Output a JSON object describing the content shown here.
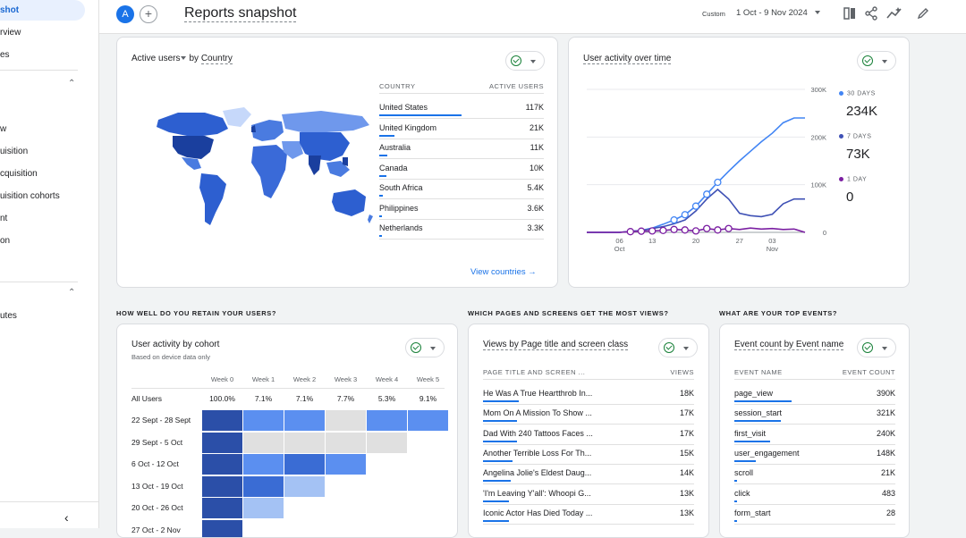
{
  "sidebar": {
    "items": [
      {
        "label": "shot"
      },
      {
        "label": "rview"
      },
      {
        "label": "es"
      },
      {
        "label": "w"
      },
      {
        "label": "uisition"
      },
      {
        "label": "cquisition"
      },
      {
        "label": "uisition cohorts"
      },
      {
        "label": "nt"
      },
      {
        "label": "on"
      },
      {
        "label": "utes"
      }
    ]
  },
  "header": {
    "avatar": "A",
    "title": "Reports snapshot",
    "date_tag": "Custom",
    "date_range": "1 Oct - 9 Nov 2024"
  },
  "country_card": {
    "title_metric": "Active users",
    "title_by": "by",
    "title_dim": "Country",
    "col1": "COUNTRY",
    "col2": "ACTIVE USERS",
    "rows": [
      {
        "name": "United States",
        "value": "117K",
        "frac": 1.0
      },
      {
        "name": "United Kingdom",
        "value": "21K",
        "frac": 0.18
      },
      {
        "name": "Australia",
        "value": "11K",
        "frac": 0.094
      },
      {
        "name": "Canada",
        "value": "10K",
        "frac": 0.085
      },
      {
        "name": "South Africa",
        "value": "5.4K",
        "frac": 0.046
      },
      {
        "name": "Philippines",
        "value": "3.6K",
        "frac": 0.031
      },
      {
        "name": "Netherlands",
        "value": "3.3K",
        "frac": 0.028
      }
    ],
    "link": "View countries"
  },
  "activity_card": {
    "title": "User activity over time",
    "legend": [
      {
        "label": "30 DAYS",
        "value": "234K",
        "color": "#4285f4"
      },
      {
        "label": "7 DAYS",
        "value": "73K",
        "color": "#3f51b5"
      },
      {
        "label": "1 DAY",
        "value": "0",
        "color": "#7b1fa2"
      }
    ]
  },
  "chart_data": {
    "type": "line",
    "title": "User activity over time",
    "x_ticks": [
      "06 Oct",
      "13",
      "20",
      "27",
      "03 Nov"
    ],
    "y_ticks": [
      "300K",
      "200K",
      "100K",
      "0"
    ],
    "ylim": [
      0,
      300000
    ],
    "x": [
      "Oct 1",
      "Oct 3",
      "Oct 5",
      "Oct 7",
      "Oct 9",
      "Oct 11",
      "Oct 13",
      "Oct 15",
      "Oct 17",
      "Oct 19",
      "Oct 21",
      "Oct 23",
      "Oct 25",
      "Oct 27",
      "Oct 29",
      "Oct 31",
      "Nov 2",
      "Nov 4",
      "Nov 6",
      "Nov 8",
      "Nov 9"
    ],
    "series": [
      {
        "name": "30 DAYS",
        "color": "#4285f4",
        "values": [
          0,
          0,
          0,
          0,
          2000,
          4000,
          9000,
          17000,
          26000,
          37000,
          55000,
          80000,
          105000,
          128000,
          150000,
          170000,
          190000,
          208000,
          230000,
          240000,
          240000
        ]
      },
      {
        "name": "7 DAYS",
        "color": "#3f51b5",
        "values": [
          0,
          0,
          0,
          0,
          2000,
          4000,
          8000,
          12000,
          18000,
          26000,
          45000,
          70000,
          90000,
          70000,
          40000,
          35000,
          33000,
          38000,
          60000,
          70000,
          70000
        ]
      },
      {
        "name": "1 DAY",
        "color": "#7b1fa2",
        "values": [
          0,
          0,
          0,
          0,
          1500,
          2500,
          3000,
          4000,
          6000,
          5000,
          3000,
          8000,
          5000,
          8000,
          6000,
          9000,
          7000,
          8000,
          6000,
          7000,
          0
        ]
      }
    ],
    "grid": true,
    "legend": "right"
  },
  "sections": {
    "retain": "HOW WELL DO YOU RETAIN YOUR USERS?",
    "pages": "WHICH PAGES AND SCREENS GET THE MOST VIEWS?",
    "events": "WHAT ARE YOUR TOP EVENTS?"
  },
  "cohort_card": {
    "title": "User activity by cohort",
    "subtitle": "Based on device data only",
    "weeks": [
      "Week 0",
      "Week 1",
      "Week 2",
      "Week 3",
      "Week 4",
      "Week 5"
    ],
    "all_users": {
      "label": "All Users",
      "values": [
        "100.0%",
        "7.1%",
        "7.1%",
        "7.7%",
        "5.3%",
        "9.1%"
      ]
    },
    "rows": [
      {
        "label": "22 Sept - 28 Sept",
        "cells": [
          1.0,
          0.55,
          0.55,
          0.0,
          0.55,
          0.55
        ]
      },
      {
        "label": "29 Sept - 5 Oct",
        "cells": [
          1.0,
          0.0,
          0.0,
          0.0,
          0.0
        ]
      },
      {
        "label": "6 Oct - 12 Oct",
        "cells": [
          1.0,
          0.55,
          0.8,
          0.55
        ]
      },
      {
        "label": "13 Oct - 19 Oct",
        "cells": [
          1.0,
          0.8,
          0.35
        ]
      },
      {
        "label": "20 Oct - 26 Oct",
        "cells": [
          1.0,
          0.35
        ]
      },
      {
        "label": "27 Oct - 2 Nov",
        "cells": [
          1.0
        ]
      }
    ]
  },
  "pages_card": {
    "title": "Views by Page title and screen class",
    "col1": "PAGE TITLE AND SCREEN ...",
    "col2": "VIEWS",
    "rows": [
      {
        "name": "He Was A True Heartthrob In...",
        "value": "18K",
        "frac": 1.0
      },
      {
        "name": "Mom On A Mission To Show ...",
        "value": "17K",
        "frac": 0.94
      },
      {
        "name": "Dad With 240 Tattoos Faces ...",
        "value": "17K",
        "frac": 0.94
      },
      {
        "name": "Another Terrible Loss For Th...",
        "value": "15K",
        "frac": 0.83
      },
      {
        "name": "Angelina Jolie's Eldest Daug...",
        "value": "14K",
        "frac": 0.78
      },
      {
        "name": "'I'm Leaving Y'all': Whoopi G...",
        "value": "13K",
        "frac": 0.72
      },
      {
        "name": "Iconic Actor Has Died Today ...",
        "value": "13K",
        "frac": 0.72
      }
    ]
  },
  "events_card": {
    "title": "Event count by Event name",
    "col1": "EVENT NAME",
    "col2": "EVENT COUNT",
    "rows": [
      {
        "name": "page_view",
        "value": "390K",
        "frac": 1.0
      },
      {
        "name": "session_start",
        "value": "321K",
        "frac": 0.82
      },
      {
        "name": "first_visit",
        "value": "240K",
        "frac": 0.62
      },
      {
        "name": "user_engagement",
        "value": "148K",
        "frac": 0.38
      },
      {
        "name": "scroll",
        "value": "21K",
        "frac": 0.054
      },
      {
        "name": "click",
        "value": "483",
        "frac": 0.01
      },
      {
        "name": "form_start",
        "value": "28",
        "frac": 0.005
      }
    ]
  }
}
